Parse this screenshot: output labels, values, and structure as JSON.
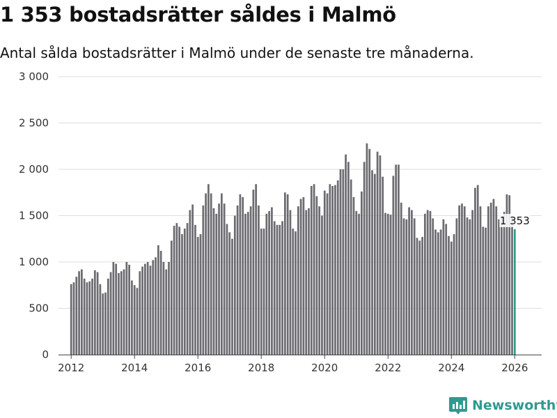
{
  "header": {
    "title": "1 353 bostadsrätter såldes i Malmö",
    "subtitle": "Antal sålda bostadsrätter i Malmö under de senaste tre månaderna."
  },
  "brand": {
    "name": "Newsworthy",
    "color": "#2f9a8f"
  },
  "chart_data": {
    "type": "bar",
    "title": "1 353 bostadsrätter såldes i Malmö",
    "xlabel": "",
    "ylabel": "",
    "ylim": [
      0,
      3000
    ],
    "xlim": [
      2011.6,
      2026.85
    ],
    "y_ticks": [
      {
        "value": 0,
        "label": "0"
      },
      {
        "value": 500,
        "label": "500"
      },
      {
        "value": 1000,
        "label": "1 000"
      },
      {
        "value": 1500,
        "label": "1 500"
      },
      {
        "value": 2000,
        "label": "2 000"
      },
      {
        "value": 2500,
        "label": "2 500"
      },
      {
        "value": 3000,
        "label": "3 000"
      }
    ],
    "x_ticks": [
      {
        "value": 2012,
        "label": "2012"
      },
      {
        "value": 2014,
        "label": "2014"
      },
      {
        "value": 2016,
        "label": "2016"
      },
      {
        "value": 2018,
        "label": "2018"
      },
      {
        "value": 2020,
        "label": "2020"
      },
      {
        "value": 2022,
        "label": "2022"
      },
      {
        "value": 2024,
        "label": "2024"
      },
      {
        "value": 2026,
        "label": "2026"
      }
    ],
    "grid": true,
    "bar_color": "#6b6b70",
    "highlight_color": "#2a9d8f",
    "start": {
      "year": 2012,
      "month": 1
    },
    "values": [
      760,
      780,
      840,
      900,
      920,
      820,
      780,
      790,
      820,
      910,
      890,
      760,
      660,
      670,
      820,
      890,
      1000,
      980,
      880,
      900,
      920,
      1000,
      970,
      800,
      750,
      720,
      900,
      950,
      980,
      1000,
      960,
      1020,
      1050,
      1180,
      1120,
      1000,
      920,
      1000,
      1230,
      1390,
      1420,
      1380,
      1300,
      1360,
      1420,
      1560,
      1620,
      1400,
      1270,
      1300,
      1610,
      1740,
      1840,
      1740,
      1580,
      1520,
      1630,
      1740,
      1630,
      1410,
      1320,
      1250,
      1500,
      1610,
      1730,
      1700,
      1520,
      1540,
      1600,
      1780,
      1840,
      1610,
      1360,
      1360,
      1520,
      1550,
      1590,
      1440,
      1400,
      1400,
      1440,
      1750,
      1730,
      1560,
      1360,
      1330,
      1600,
      1680,
      1700,
      1560,
      1580,
      1820,
      1840,
      1710,
      1600,
      1500,
      1770,
      1740,
      1840,
      1820,
      1830,
      1880,
      2000,
      2000,
      2160,
      2080,
      1890,
      1700,
      1550,
      1520,
      1760,
      2080,
      2280,
      2220,
      1990,
      1950,
      2190,
      2150,
      1920,
      1530,
      1520,
      1510,
      1930,
      2050,
      2050,
      1640,
      1470,
      1460,
      1590,
      1560,
      1470,
      1260,
      1230,
      1270,
      1520,
      1560,
      1550,
      1470,
      1350,
      1320,
      1350,
      1460,
      1410,
      1280,
      1220,
      1300,
      1470,
      1610,
      1630,
      1600,
      1480,
      1460,
      1560,
      1800,
      1830,
      1600,
      1380,
      1370,
      1600,
      1640,
      1680,
      1600,
      1460,
      1500,
      1540,
      1730,
      1720,
      1500,
      1353
    ],
    "highlight_index": 168,
    "annotation": {
      "text": "1 353",
      "value": 1353
    }
  }
}
